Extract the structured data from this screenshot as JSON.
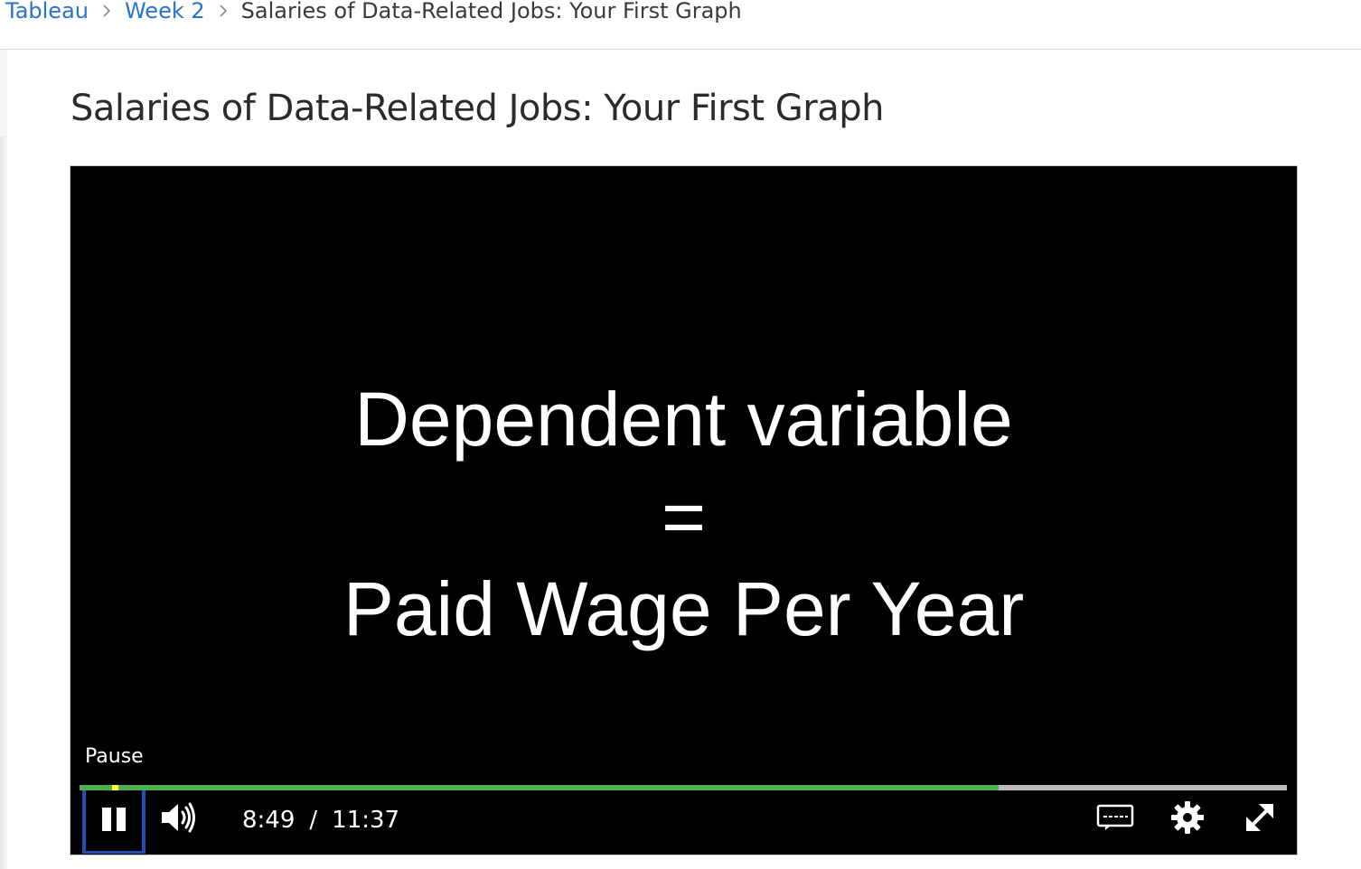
{
  "breadcrumb": {
    "items": [
      {
        "label": "Tableau"
      },
      {
        "label": "Week 2"
      },
      {
        "label": "Salaries of Data-Related Jobs: Your First Graph"
      }
    ]
  },
  "page": {
    "title": "Salaries of Data-Related Jobs: Your First Graph"
  },
  "video": {
    "slide": {
      "line1": "Dependent variable",
      "line2": "=",
      "line3": "Paid Wage Per Year"
    },
    "tooltip": "Pause",
    "progress": {
      "played_fraction": 0.761,
      "handle_fraction": 0.027,
      "played_color": "#4caf50",
      "track_color": "#bdbdbd",
      "handle_color": "#ffff33"
    },
    "current_time": "8:49",
    "time_separator": "/",
    "duration": "11:37",
    "icons": {
      "play_pause": "pause-icon",
      "volume": "volume-icon",
      "captions": "captions-icon",
      "settings": "gear-icon",
      "fullscreen": "fullscreen-icon"
    }
  },
  "colors": {
    "link": "#2a73cc",
    "focus_outline": "#1f4fb8"
  }
}
